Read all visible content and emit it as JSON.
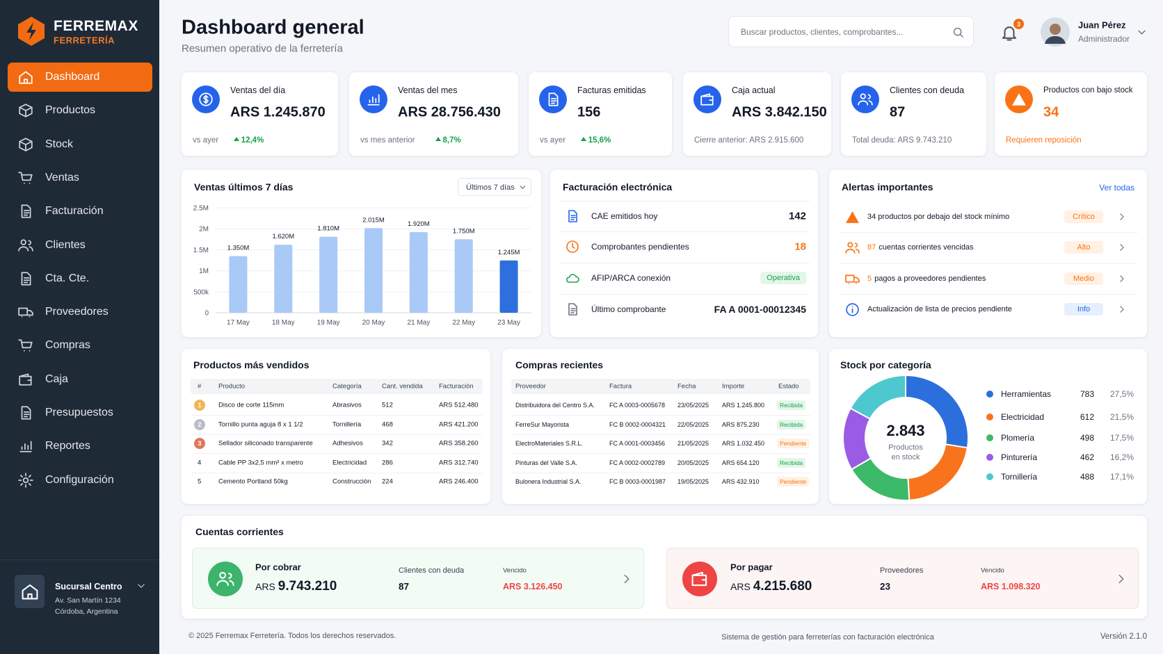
{
  "brand": {
    "name": "FERREMAX",
    "sub": "FERRETERÍA"
  },
  "menu": [
    "Dashboard",
    "Productos",
    "Stock",
    "Ventas",
    "Facturación",
    "Clientes",
    "Cta. Cte.",
    "Proveedores",
    "Compras",
    "Caja",
    "Presupuestos",
    "Reportes",
    "Configuración"
  ],
  "branch": {
    "name": "Sucursal Centro",
    "address": "Av. San Martín 1234",
    "city": "Córdoba, Argentina"
  },
  "header": {
    "title": "Dashboard general",
    "subtitle": "Resumen operativo de la ferretería",
    "search_placeholder": "Buscar productos, clientes, comprobantes...",
    "notifications": "3",
    "user_name": "Juan Pérez",
    "user_role": "Administrador"
  },
  "kpis": [
    {
      "label": "Ventas del día",
      "value": "ARS 1.245.870",
      "note": "vs ayer",
      "change": "12,4%"
    },
    {
      "label": "Ventas del mes",
      "value": "ARS 28.756.430",
      "note": "vs mes anterior",
      "change": "8,7%"
    },
    {
      "label": "Facturas emitidas",
      "value": "156",
      "note": "vs ayer",
      "change": "15,6%"
    },
    {
      "label": "Caja actual",
      "value": "ARS 3.842.150",
      "note": "Cierre anterior: ARS 2.915.600"
    },
    {
      "label": "Clientes con deuda",
      "value": "87",
      "note": "Total deuda: ARS 9.743.210"
    },
    {
      "label": "Productos con bajo stock",
      "value": "34",
      "note": "Requieren reposición"
    }
  ],
  "chart_data": [
    {
      "type": "bar",
      "title": "Ventas últimos 7 días",
      "filter": "Últimos 7 días",
      "categories": [
        "17 May",
        "18 May",
        "19 May",
        "20 May",
        "21 May",
        "22 May",
        "23 May"
      ],
      "values": [
        1350000,
        1620000,
        1810000,
        2015000,
        1920000,
        1750000,
        1245000
      ],
      "value_labels": [
        "1.350M",
        "1.620M",
        "1.810M",
        "2.015M",
        "1.920M",
        "1.750M",
        "1.245M"
      ],
      "colors": [
        "#a9c9f6",
        "#a9c9f6",
        "#a9c9f6",
        "#a9c9f6",
        "#a9c9f6",
        "#a9c9f6",
        "#2d6fdc"
      ],
      "ylim": [
        0,
        2500000
      ],
      "yticks": [
        0,
        {
          "value": 500000,
          "label": "500k"
        },
        {
          "value": 1000000,
          "label": "1M"
        },
        {
          "value": 1500000,
          "label": "1.5M"
        },
        {
          "value": 2000000,
          "label": "2M"
        },
        {
          "value": 2500000,
          "label": "2.5M"
        }
      ],
      "grid": true
    },
    {
      "type": "pie",
      "title": "Stock por categoría",
      "center_value": "2.843",
      "center_label": [
        "Productos",
        "en stock"
      ],
      "categories": [
        "Herramientas",
        "Electricidad",
        "Plomería",
        "Pinturería",
        "Tornillería"
      ],
      "values": [
        783,
        612,
        498,
        462,
        488
      ],
      "shares": [
        "27,5%",
        "21,5%",
        "17,5%",
        "16,2%",
        "17,1%"
      ],
      "colors": [
        "#2b6fdc",
        "#f7741d",
        "#3dba69",
        "#9a5ce4",
        "#4ec8cf"
      ]
    }
  ],
  "einvoice": {
    "title": "Facturación electrónica",
    "rows": [
      {
        "label": "CAE emitidos hoy",
        "value": "142"
      },
      {
        "label": "Comprobantes pendientes",
        "value": "18"
      },
      {
        "label": "AFIP/ARCA conexión",
        "value": "Operativa"
      },
      {
        "label": "Último comprobante",
        "value": "FA A 0001-00012345"
      }
    ]
  },
  "alerts": {
    "title": "Alertas importantes",
    "link": "Ver todas",
    "items": [
      {
        "text": "34 productos por debajo del stock mínimo",
        "badge": "Crítico"
      },
      {
        "lead": "87",
        "text": "cuentas corrientes vencidas",
        "badge": "Alto"
      },
      {
        "lead": "5",
        "text": "pagos a proveedores pendientes",
        "badge": "Medio"
      },
      {
        "text": "Actualización de lista de precios pendiente",
        "badge": "Info"
      }
    ]
  },
  "top_products": {
    "title": "Productos más vendidos",
    "columns": [
      "#",
      "Producto",
      "Categoría",
      "Cant. vendida",
      "Facturación"
    ],
    "rows": [
      [
        "1",
        "Disco de corte 115mm",
        "Abrasivos",
        "512",
        "ARS 512.480"
      ],
      [
        "2",
        "Tornillo punta aguja 8 x 1 1/2",
        "Tornillería",
        "468",
        "ARS 421.200"
      ],
      [
        "3",
        "Sellador siliconado transparente",
        "Adhesivos",
        "342",
        "ARS 358.260"
      ],
      [
        "4",
        "Cable PP 3x2,5 mm² x metro",
        "Electricidad",
        "286",
        "ARS 312.740"
      ],
      [
        "5",
        "Cemento Portland 50kg",
        "Construcción",
        "224",
        "ARS 246.400"
      ]
    ]
  },
  "purchases": {
    "title": "Compras recientes",
    "columns": [
      "Proveedor",
      "Factura",
      "Fecha",
      "Importe",
      "Estado"
    ],
    "rows": [
      [
        "Distribuidora del Centro S.A.",
        "FC A 0003-0005678",
        "23/05/2025",
        "ARS 1.245.800",
        "Recibida"
      ],
      [
        "FerreSur Mayorista",
        "FC B 0002-0004321",
        "22/05/2025",
        "ARS 875.230",
        "Recibida"
      ],
      [
        "ElectroMateriales S.R.L.",
        "FC A 0001-0003456",
        "21/05/2025",
        "ARS 1.032.450",
        "Pendiente"
      ],
      [
        "Pinturas del Valle S.A.",
        "FC A 0002-0002789",
        "20/05/2025",
        "ARS 654.120",
        "Recibida"
      ],
      [
        "Bulonera Industrial S.A.",
        "FC B 0003-0001987",
        "19/05/2025",
        "ARS 432.910",
        "Pendiente"
      ]
    ]
  },
  "accounts": {
    "title": "Cuentas corrientes",
    "receivable": {
      "title": "Por cobrar",
      "currency": "ARS",
      "amount": "9.743.210",
      "count_label": "Clientes con deuda",
      "count": "87",
      "overdue_label": "Vencido",
      "overdue": "ARS 3.126.450"
    },
    "payable": {
      "title": "Por pagar",
      "currency": "ARS",
      "amount": "4.215.680",
      "count_label": "Proveedores",
      "count": "23",
      "overdue_label": "Vencido",
      "overdue": "ARS 1.098.320"
    }
  },
  "footer": {
    "copyright": "© 2025 Ferremax Ferretería. Todos los derechos reservados.",
    "tagline": "Sistema de gestión para ferreterías con facturación electrónica",
    "version": "Versión 2.1.0"
  }
}
